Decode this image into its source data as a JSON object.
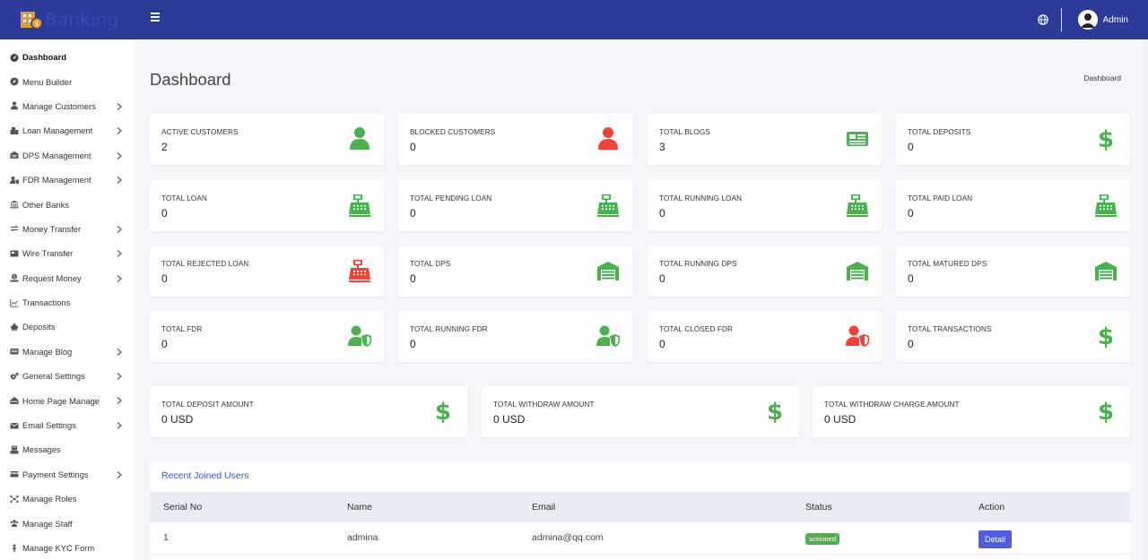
{
  "brand": {
    "name": "Banking"
  },
  "topbar": {
    "user": "Admin"
  },
  "sidebar": {
    "items": [
      {
        "label": "Dashboard",
        "icon": "dashboard-icon",
        "chevron": false
      },
      {
        "label": "Menu Builder",
        "icon": "compass-icon",
        "chevron": false
      },
      {
        "label": "Manage Customers",
        "icon": "user-icon",
        "chevron": true
      },
      {
        "label": "Loan Management",
        "icon": "loan-icon",
        "chevron": true
      },
      {
        "label": "DPS Management",
        "icon": "dps-icon",
        "chevron": true
      },
      {
        "label": "FDR Management",
        "icon": "fdr-icon",
        "chevron": true
      },
      {
        "label": "Other Banks",
        "icon": "bank-icon",
        "chevron": false
      },
      {
        "label": "Money Transfer",
        "icon": "exchange-icon",
        "chevron": true
      },
      {
        "label": "Wire Transfer",
        "icon": "wire-icon",
        "chevron": true
      },
      {
        "label": "Request Money",
        "icon": "request-icon",
        "chevron": true
      },
      {
        "label": "Transactions",
        "icon": "chart-line-icon",
        "chevron": false
      },
      {
        "label": "Deposits",
        "icon": "piggy-bank-icon",
        "chevron": false
      },
      {
        "label": "Manage Blog",
        "icon": "blog-icon",
        "chevron": true
      },
      {
        "label": "General Settings",
        "icon": "cogs-icon",
        "chevron": true
      },
      {
        "label": "Home Page Manage",
        "icon": "home-page-icon",
        "chevron": true
      },
      {
        "label": "Email Settings",
        "icon": "envelope-icon",
        "chevron": true
      },
      {
        "label": "Messages",
        "icon": "messages-icon",
        "chevron": false
      },
      {
        "label": "Payment Settings",
        "icon": "payment-icon",
        "chevron": true
      },
      {
        "label": "Manage Roles",
        "icon": "roles-icon",
        "chevron": false
      },
      {
        "label": "Manage Staff",
        "icon": "staff-icon",
        "chevron": false
      },
      {
        "label": "Manage KYC Form",
        "icon": "kyc-icon",
        "chevron": false
      }
    ]
  },
  "header": {
    "title": "Dashboard",
    "breadcrumb": "Dashboard"
  },
  "stats": [
    {
      "label": "ACTIVE CUSTOMERS",
      "value": "2",
      "icon": "user-icon",
      "color": "#4caf50"
    },
    {
      "label": "BLOCKED CUSTOMERS",
      "value": "0",
      "icon": "user-icon",
      "color": "#f44336"
    },
    {
      "label": "TOTAL BLOGS",
      "value": "3",
      "icon": "newspaper-icon",
      "color": "#4caf50"
    },
    {
      "label": "TOTAL DEPOSITS",
      "value": "0",
      "icon": "dollar-icon",
      "color": "#4caf50"
    },
    {
      "label": "TOTAL LOAN",
      "value": "0",
      "icon": "cash-register-icon",
      "color": "#4caf50"
    },
    {
      "label": "TOTAL PENDING LOAN",
      "value": "0",
      "icon": "cash-register-icon",
      "color": "#4caf50"
    },
    {
      "label": "TOTAL RUNNING LOAN",
      "value": "0",
      "icon": "cash-register-icon",
      "color": "#4caf50"
    },
    {
      "label": "TOTAL PAID LOAN",
      "value": "0",
      "icon": "cash-register-icon",
      "color": "#4caf50"
    },
    {
      "label": "TOTAL REJECTED LOAN",
      "value": "0",
      "icon": "cash-register-icon",
      "color": "#f44336"
    },
    {
      "label": "TOTAL DPS",
      "value": "0",
      "icon": "warehouse-icon",
      "color": "#4caf50"
    },
    {
      "label": "TOTAL RUNNING DPS",
      "value": "0",
      "icon": "warehouse-icon",
      "color": "#4caf50"
    },
    {
      "label": "TOTAL MATURED DPS",
      "value": "0",
      "icon": "warehouse-icon",
      "color": "#4caf50"
    },
    {
      "label": "TOTAL FDR",
      "value": "0",
      "icon": "user-shield-icon",
      "color": "#4caf50"
    },
    {
      "label": "TOTAL RUNNING FDR",
      "value": "0",
      "icon": "user-shield-icon",
      "color": "#4caf50"
    },
    {
      "label": "TOTAL CLOSED FDR",
      "value": "0",
      "icon": "user-shield-icon",
      "color": "#f44336"
    },
    {
      "label": "TOTAL TRANSACTIONS",
      "value": "0",
      "icon": "dollar-icon",
      "color": "#4caf50"
    }
  ],
  "amounts": [
    {
      "label": "TOTAL DEPOSIT AMOUNT",
      "value": "0 USD",
      "icon": "dollar-icon",
      "color": "#4caf50"
    },
    {
      "label": "TOTAL WITHDRAW AMOUNT",
      "value": "0 USD",
      "icon": "dollar-icon",
      "color": "#4caf50"
    },
    {
      "label": "TOTAL WITHDRAW CHARGE AMOUNT",
      "value": "0 USD",
      "icon": "dollar-icon",
      "color": "#4caf50"
    }
  ],
  "recent": {
    "title": "Recent Joined Users",
    "columns": [
      "Serial No",
      "Name",
      "Email",
      "Status",
      "Action"
    ],
    "rows": [
      {
        "serial": "1",
        "name": "admina",
        "email": "admina@qq.com",
        "status": "activated",
        "action": "Detail"
      }
    ]
  }
}
